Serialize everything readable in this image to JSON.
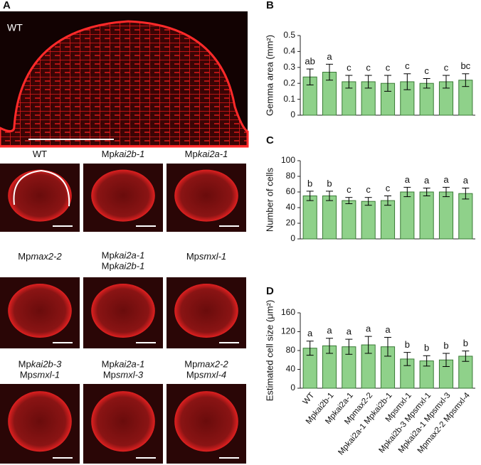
{
  "panel_labels": [
    "A",
    "B",
    "C",
    "D"
  ],
  "top_image": {
    "label": "WT"
  },
  "gemma_images": [
    {
      "lines": [
        [
          {
            "text": "WT"
          }
        ]
      ]
    },
    {
      "lines": [
        [
          {
            "text": "Mp"
          },
          {
            "text": "kai2b-1",
            "italic": true
          }
        ]
      ]
    },
    {
      "lines": [
        [
          {
            "text": "Mp"
          },
          {
            "text": "kai2a-1",
            "italic": true
          }
        ]
      ]
    },
    {
      "lines": [
        [
          {
            "text": "Mp"
          },
          {
            "text": "max2-2",
            "italic": true
          }
        ]
      ]
    },
    {
      "lines": [
        [
          {
            "text": "Mp"
          },
          {
            "text": "kai2a-1",
            "italic": true
          }
        ],
        [
          {
            "text": "Mp"
          },
          {
            "text": "kai2b-1",
            "italic": true
          }
        ]
      ]
    },
    {
      "lines": [
        [
          {
            "text": "Mp"
          },
          {
            "text": "smxl-1",
            "italic": true
          }
        ]
      ]
    },
    {
      "lines": [
        [
          {
            "text": "Mp"
          },
          {
            "text": "kai2b-3",
            "italic": true
          }
        ],
        [
          {
            "text": "Mp"
          },
          {
            "text": "smxl-1",
            "italic": true
          }
        ]
      ]
    },
    {
      "lines": [
        [
          {
            "text": "Mp"
          },
          {
            "text": "kai2a-1",
            "italic": true
          }
        ],
        [
          {
            "text": "Mp"
          },
          {
            "text": "smxl-3",
            "italic": true
          }
        ]
      ]
    },
    {
      "lines": [
        [
          {
            "text": "Mp"
          },
          {
            "text": "max2-2",
            "italic": true
          }
        ],
        [
          {
            "text": "Mp"
          },
          {
            "text": "smxl-4",
            "italic": true
          }
        ]
      ]
    }
  ],
  "chart_data": [
    {
      "type": "bar",
      "y_label": "Gemma area (mm²)",
      "color": "#8fd18a",
      "values": [
        0.24,
        0.27,
        0.21,
        0.21,
        0.2,
        0.21,
        0.2,
        0.21,
        0.22
      ],
      "errors": [
        0.05,
        0.05,
        0.04,
        0.04,
        0.05,
        0.05,
        0.03,
        0.04,
        0.04
      ],
      "annotations": [
        "ab",
        "a",
        "c",
        "c",
        "c",
        "c",
        "c",
        "c",
        "bc"
      ],
      "ylim": [
        0,
        0.5
      ],
      "yticks": [
        0,
        0.1,
        0.2,
        0.3,
        0.4,
        0.5
      ]
    },
    {
      "type": "bar",
      "y_label": "Number of cells",
      "color": "#8fd18a",
      "values": [
        55,
        55,
        49,
        48,
        49,
        60,
        60,
        60,
        58
      ],
      "errors": [
        6,
        6,
        4,
        5,
        6,
        6,
        5,
        6,
        7
      ],
      "annotations": [
        "b",
        "b",
        "c",
        "c",
        "c",
        "a",
        "a",
        "a",
        "a"
      ],
      "ylim": [
        0,
        100
      ],
      "yticks": [
        0,
        20,
        40,
        60,
        80,
        100
      ]
    },
    {
      "type": "bar",
      "y_label": "Estimated cell size (μm²)",
      "color": "#8fd18a",
      "categories": [
        "WT",
        "Mpkai2b-1",
        "Mpkai2a-1",
        "Mpmax2-2",
        "Mpkai2a-1 Mpkai2b-1",
        "Mpsmxl-1",
        "Mpkai2b-3 Mpsmxl-1",
        "Mpkai2a-1 Mpsmxl-3",
        "Mpmax2-2 Mpsmxl-4"
      ],
      "values": [
        85,
        90,
        88,
        92,
        88,
        62,
        58,
        60,
        68
      ],
      "errors": [
        15,
        16,
        16,
        18,
        20,
        14,
        11,
        14,
        11
      ],
      "annotations": [
        "a",
        "a",
        "a",
        "a",
        "a",
        "b",
        "b",
        "b",
        "b"
      ],
      "ylim": [
        0,
        160
      ],
      "yticks": [
        0,
        40,
        80,
        120,
        160
      ]
    }
  ]
}
